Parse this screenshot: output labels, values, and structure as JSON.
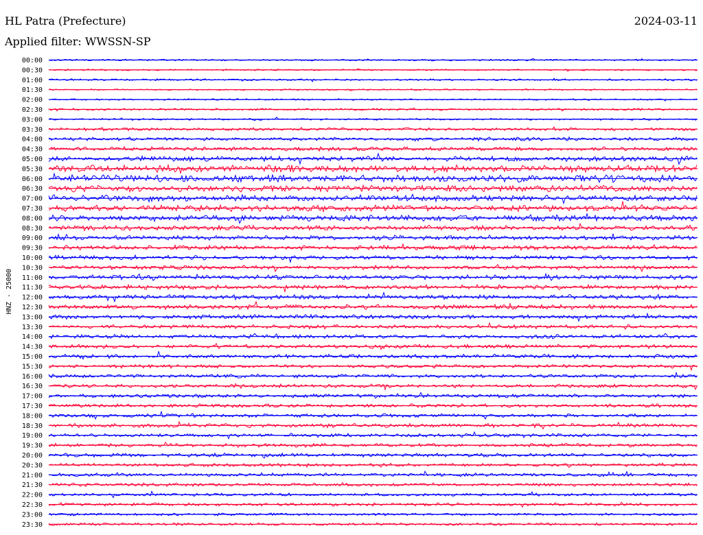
{
  "chart_data": {
    "type": "line",
    "title": "HL Patra (Prefecture)",
    "subtitle": "Applied filter: WWSSN-SP",
    "date": "2024-03-11",
    "ylabel": "HNZ - 25000",
    "colors": {
      "even": "#0000ff",
      "odd": "#ff0033"
    },
    "rows": [
      {
        "time": "00:00",
        "level": 0.15
      },
      {
        "time": "00:30",
        "level": 0.12
      },
      {
        "time": "01:00",
        "level": 0.18
      },
      {
        "time": "01:30",
        "level": 0.1
      },
      {
        "time": "02:00",
        "level": 0.14
      },
      {
        "time": "02:30",
        "level": 0.2
      },
      {
        "time": "03:00",
        "level": 0.18
      },
      {
        "time": "03:30",
        "level": 0.35
      },
      {
        "time": "04:00",
        "level": 0.45
      },
      {
        "time": "04:30",
        "level": 0.5
      },
      {
        "time": "05:00",
        "level": 0.7
      },
      {
        "time": "05:30",
        "level": 0.95
      },
      {
        "time": "06:00",
        "level": 0.95
      },
      {
        "time": "06:30",
        "level": 0.9
      },
      {
        "time": "07:00",
        "level": 0.9
      },
      {
        "time": "07:30",
        "level": 0.85
      },
      {
        "time": "08:00",
        "level": 0.85
      },
      {
        "time": "08:30",
        "level": 0.65
      },
      {
        "time": "09:00",
        "level": 0.6
      },
      {
        "time": "09:30",
        "level": 0.6
      },
      {
        "time": "10:00",
        "level": 0.55
      },
      {
        "time": "10:30",
        "level": 0.55
      },
      {
        "time": "11:00",
        "level": 0.6
      },
      {
        "time": "11:30",
        "level": 0.6
      },
      {
        "time": "12:00",
        "level": 0.6
      },
      {
        "time": "12:30",
        "level": 0.6
      },
      {
        "time": "13:00",
        "level": 0.55
      },
      {
        "time": "13:30",
        "level": 0.5
      },
      {
        "time": "14:00",
        "level": 0.5
      },
      {
        "time": "14:30",
        "level": 0.5
      },
      {
        "time": "15:00",
        "level": 0.5
      },
      {
        "time": "15:30",
        "level": 0.45
      },
      {
        "time": "16:00",
        "level": 0.45
      },
      {
        "time": "16:30",
        "level": 0.45
      },
      {
        "time": "17:00",
        "level": 0.45
      },
      {
        "time": "17:30",
        "level": 0.45
      },
      {
        "time": "18:00",
        "level": 0.45
      },
      {
        "time": "18:30",
        "level": 0.5
      },
      {
        "time": "19:00",
        "level": 0.45
      },
      {
        "time": "19:30",
        "level": 0.45
      },
      {
        "time": "20:00",
        "level": 0.45
      },
      {
        "time": "20:30",
        "level": 0.4
      },
      {
        "time": "21:00",
        "level": 0.4
      },
      {
        "time": "21:30",
        "level": 0.4
      },
      {
        "time": "22:00",
        "level": 0.35
      },
      {
        "time": "22:30",
        "level": 0.4
      },
      {
        "time": "23:00",
        "level": 0.3
      },
      {
        "time": "23:30",
        "level": 0.3
      }
    ]
  }
}
